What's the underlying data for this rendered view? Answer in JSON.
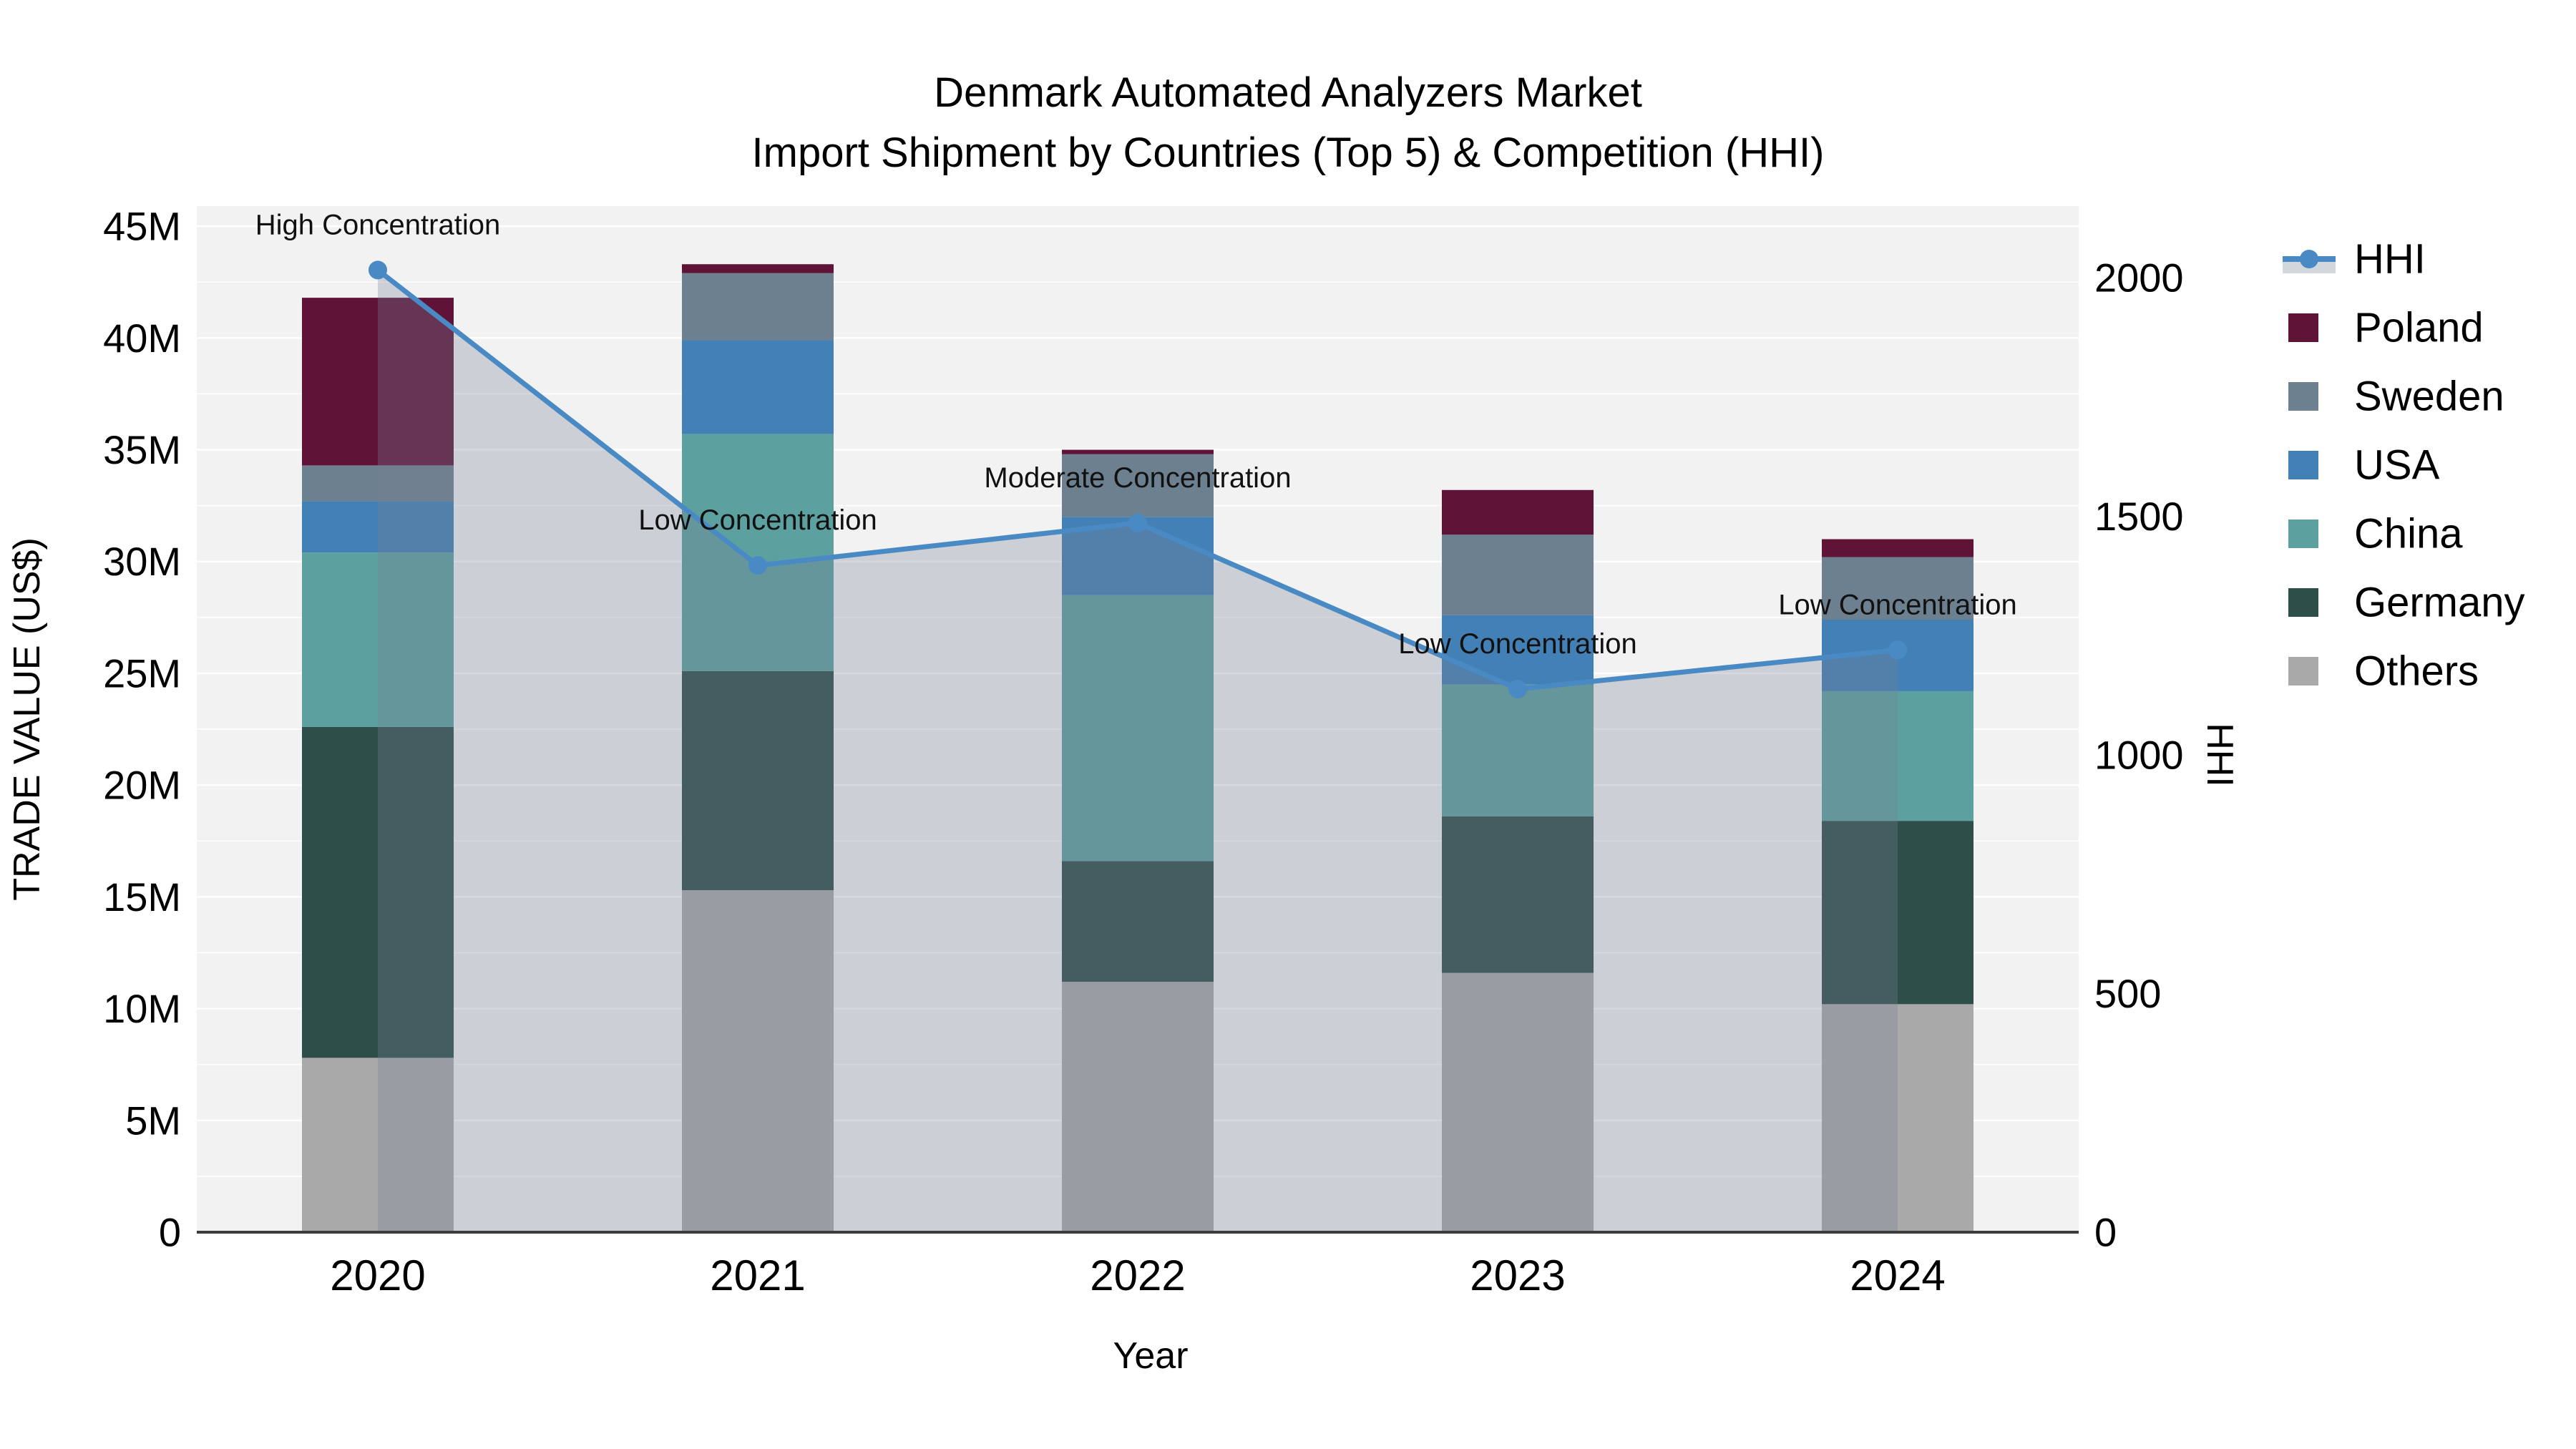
{
  "chart_data": {
    "type": "bar",
    "subtype": "stacked-bar-with-line-overlay",
    "title": {
      "line1": "Denmark Automated Analyzers Market",
      "line2": "Import Shipment by Countries (Top 5) & Competition (HHI)"
    },
    "xlabel": "Year",
    "ylabel": "TRADE VALUE (US$)",
    "y2label": "HHI",
    "value_unit": "M US$",
    "categories": [
      "2020",
      "2021",
      "2022",
      "2023",
      "2024"
    ],
    "stack_order_bottom_to_top": [
      "Others",
      "Germany",
      "China",
      "USA",
      "Sweden",
      "Poland"
    ],
    "series": [
      {
        "name": "Poland",
        "color": "#5f1437",
        "values": [
          7.5,
          0.4,
          0.2,
          2.0,
          0.8
        ]
      },
      {
        "name": "Sweden",
        "color": "#6d8090",
        "values": [
          1.6,
          3.0,
          2.8,
          3.6,
          2.8
        ]
      },
      {
        "name": "USA",
        "color": "#4380b6",
        "values": [
          2.3,
          4.2,
          3.5,
          3.1,
          3.2
        ]
      },
      {
        "name": "China",
        "color": "#5da0a0",
        "values": [
          7.8,
          10.6,
          11.9,
          5.9,
          5.8
        ]
      },
      {
        "name": "Germany",
        "color": "#2e4e4a",
        "values": [
          14.8,
          9.8,
          5.4,
          7.0,
          8.2
        ]
      },
      {
        "name": "Others",
        "color": "#a9a9aa",
        "values": [
          7.8,
          15.3,
          11.2,
          11.6,
          10.2
        ]
      }
    ],
    "bar_totals": [
      41.8,
      43.3,
      35.0,
      33.2,
      31.0
    ],
    "line_series": {
      "name": "HHI",
      "color": "#4a8ac4",
      "area_fill": "rgba(120,130,150,0.31)",
      "legend_band_color": "#d2d6dd",
      "values": [
        2016,
        1397,
        1486,
        1138,
        1220
      ]
    },
    "annotations": [
      {
        "x": "2020",
        "text": "High Concentration"
      },
      {
        "x": "2021",
        "text": "Low Concentration"
      },
      {
        "x": "2022",
        "text": "Moderate Concentration"
      },
      {
        "x": "2023",
        "text": "Low Concentration"
      },
      {
        "x": "2024",
        "text": "Low Concentration"
      }
    ],
    "y_axis": {
      "tick_labels": [
        "0",
        "5M",
        "10M",
        "15M",
        "20M",
        "25M",
        "30M",
        "35M",
        "40M",
        "45M"
      ],
      "tick_values": [
        0,
        5,
        10,
        15,
        20,
        25,
        30,
        35,
        40,
        45
      ],
      "minor_grid_step": 2.5,
      "max": 45.9
    },
    "y2_axis": {
      "tick_labels": [
        "0",
        "500",
        "1000",
        "1500",
        "2000"
      ],
      "tick_values": [
        0,
        500,
        1000,
        1500,
        2000
      ],
      "max": 2150
    },
    "legend_order": [
      "HHI",
      "Poland",
      "Sweden",
      "USA",
      "China",
      "Germany",
      "Others"
    ],
    "layout_hints": {
      "grid": "on",
      "legend_position": "right",
      "plot_background": "#f2f2f2"
    }
  }
}
